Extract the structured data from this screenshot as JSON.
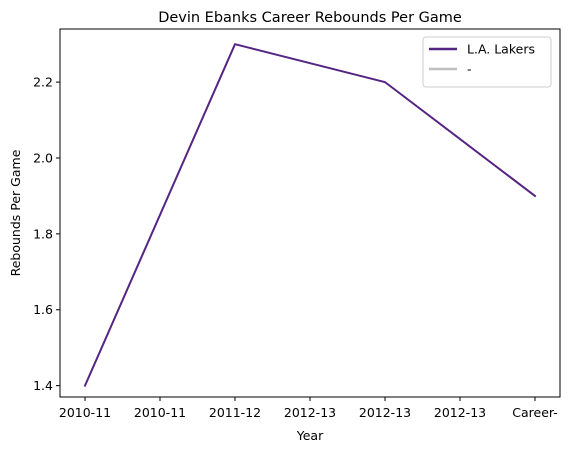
{
  "chart_data": {
    "type": "line",
    "title": "Devin Ebanks Career Rebounds Per Game",
    "xlabel": "Year",
    "ylabel": "Rebounds Per Game",
    "categories": [
      "2010-11",
      "2010-11",
      "2011-12",
      "2012-13",
      "2012-13",
      "2012-13",
      "Career-"
    ],
    "ylim": [
      1.37,
      2.34
    ],
    "yticks": [
      1.4,
      1.6,
      1.8,
      2.0,
      2.2
    ],
    "ytick_labels": [
      "1.4",
      "1.6",
      "1.8",
      "2.0",
      "2.2"
    ],
    "grid": false,
    "legend_position": "top-right",
    "series": [
      {
        "name": "L.A. Lakers",
        "color": "#552583",
        "points": [
          {
            "x": 0,
            "y": 1.4
          },
          {
            "x": 2,
            "y": 2.3
          },
          {
            "x": 4,
            "y": 2.2
          },
          {
            "x": 6,
            "y": 1.9
          }
        ]
      },
      {
        "name": "-",
        "color": "#c0c0c0",
        "points": []
      }
    ]
  }
}
